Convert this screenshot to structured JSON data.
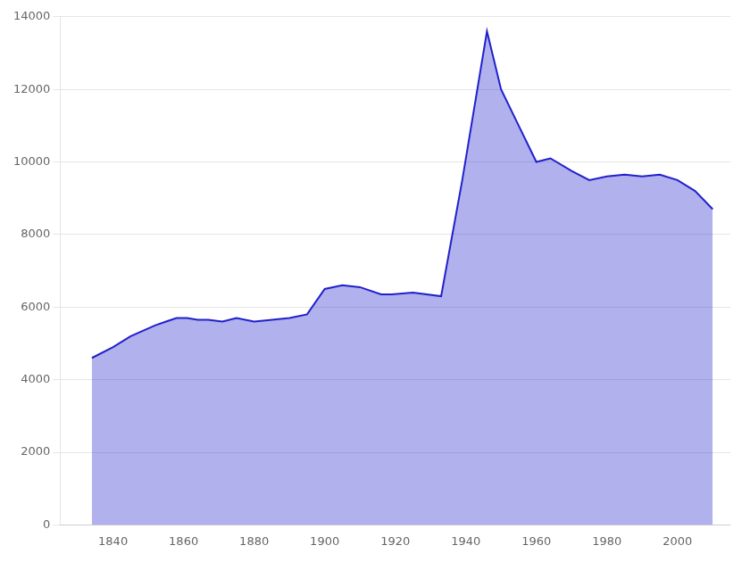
{
  "chart_data": {
    "type": "area",
    "x": [
      1834,
      1840,
      1845,
      1852,
      1855,
      1858,
      1861,
      1864,
      1867,
      1871,
      1875,
      1880,
      1885,
      1890,
      1895,
      1900,
      1905,
      1910,
      1916,
      1919,
      1925,
      1933,
      1939,
      1946,
      1950,
      1955,
      1960,
      1964,
      1970,
      1975,
      1980,
      1985,
      1990,
      1995,
      2000,
      2005,
      2010
    ],
    "values": [
      4600,
      4900,
      5200,
      5500,
      5600,
      5700,
      5700,
      5650,
      5650,
      5600,
      5700,
      5600,
      5650,
      5700,
      5800,
      6500,
      6600,
      6550,
      6350,
      6350,
      6400,
      6300,
      9500,
      13600,
      12000,
      11000,
      10000,
      10100,
      9750,
      9500,
      9600,
      9650,
      9600,
      9650,
      9500,
      9200,
      8700
    ],
    "color": "#2020cc",
    "xlim": [
      1825,
      2015
    ],
    "ylim": [
      0,
      14000
    ],
    "xticks": [
      1840,
      1860,
      1880,
      1900,
      1920,
      1940,
      1960,
      1980,
      2000
    ],
    "yticks": [
      0,
      2000,
      4000,
      6000,
      8000,
      10000,
      12000,
      14000
    ],
    "grid": "y"
  }
}
